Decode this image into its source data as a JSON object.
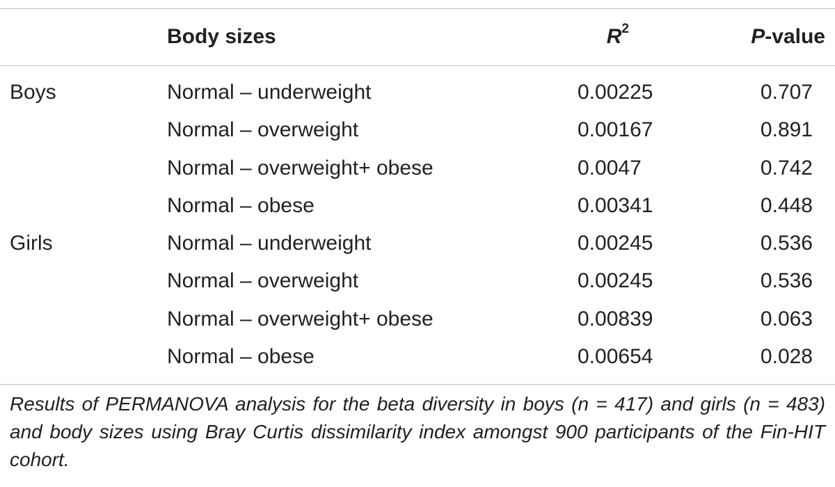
{
  "table": {
    "headers": {
      "group": "",
      "body_sizes": "Body sizes",
      "r2_base": "R",
      "r2_sup": "2",
      "p_italic": "P",
      "p_rest": "-value"
    },
    "rows": [
      {
        "group": "Boys",
        "comparison": "Normal – underweight",
        "r2": "0.00225",
        "p": "0.707"
      },
      {
        "group": "",
        "comparison": "Normal – overweight",
        "r2": "0.00167",
        "p": "0.891"
      },
      {
        "group": "",
        "comparison": "Normal – overweight+ obese",
        "r2": "0.0047",
        "p": "0.742"
      },
      {
        "group": "",
        "comparison": "Normal – obese",
        "r2": "0.00341",
        "p": "0.448"
      },
      {
        "group": "Girls",
        "comparison": "Normal – underweight",
        "r2": "0.00245",
        "p": "0.536"
      },
      {
        "group": "",
        "comparison": "Normal – overweight",
        "r2": "0.00245",
        "p": "0.536"
      },
      {
        "group": "",
        "comparison": "Normal – overweight+ obese",
        "r2": "0.00839",
        "p": "0.063"
      },
      {
        "group": "",
        "comparison": "Normal – obese",
        "r2": "0.00654",
        "p": "0.028"
      }
    ],
    "caption": "Results of PERMANOVA analysis for the beta diversity in boys (n = 417) and girls (n = 483) and body sizes using Bray Curtis dissimilarity index amongst 900 participants of the Fin-HIT cohort."
  }
}
